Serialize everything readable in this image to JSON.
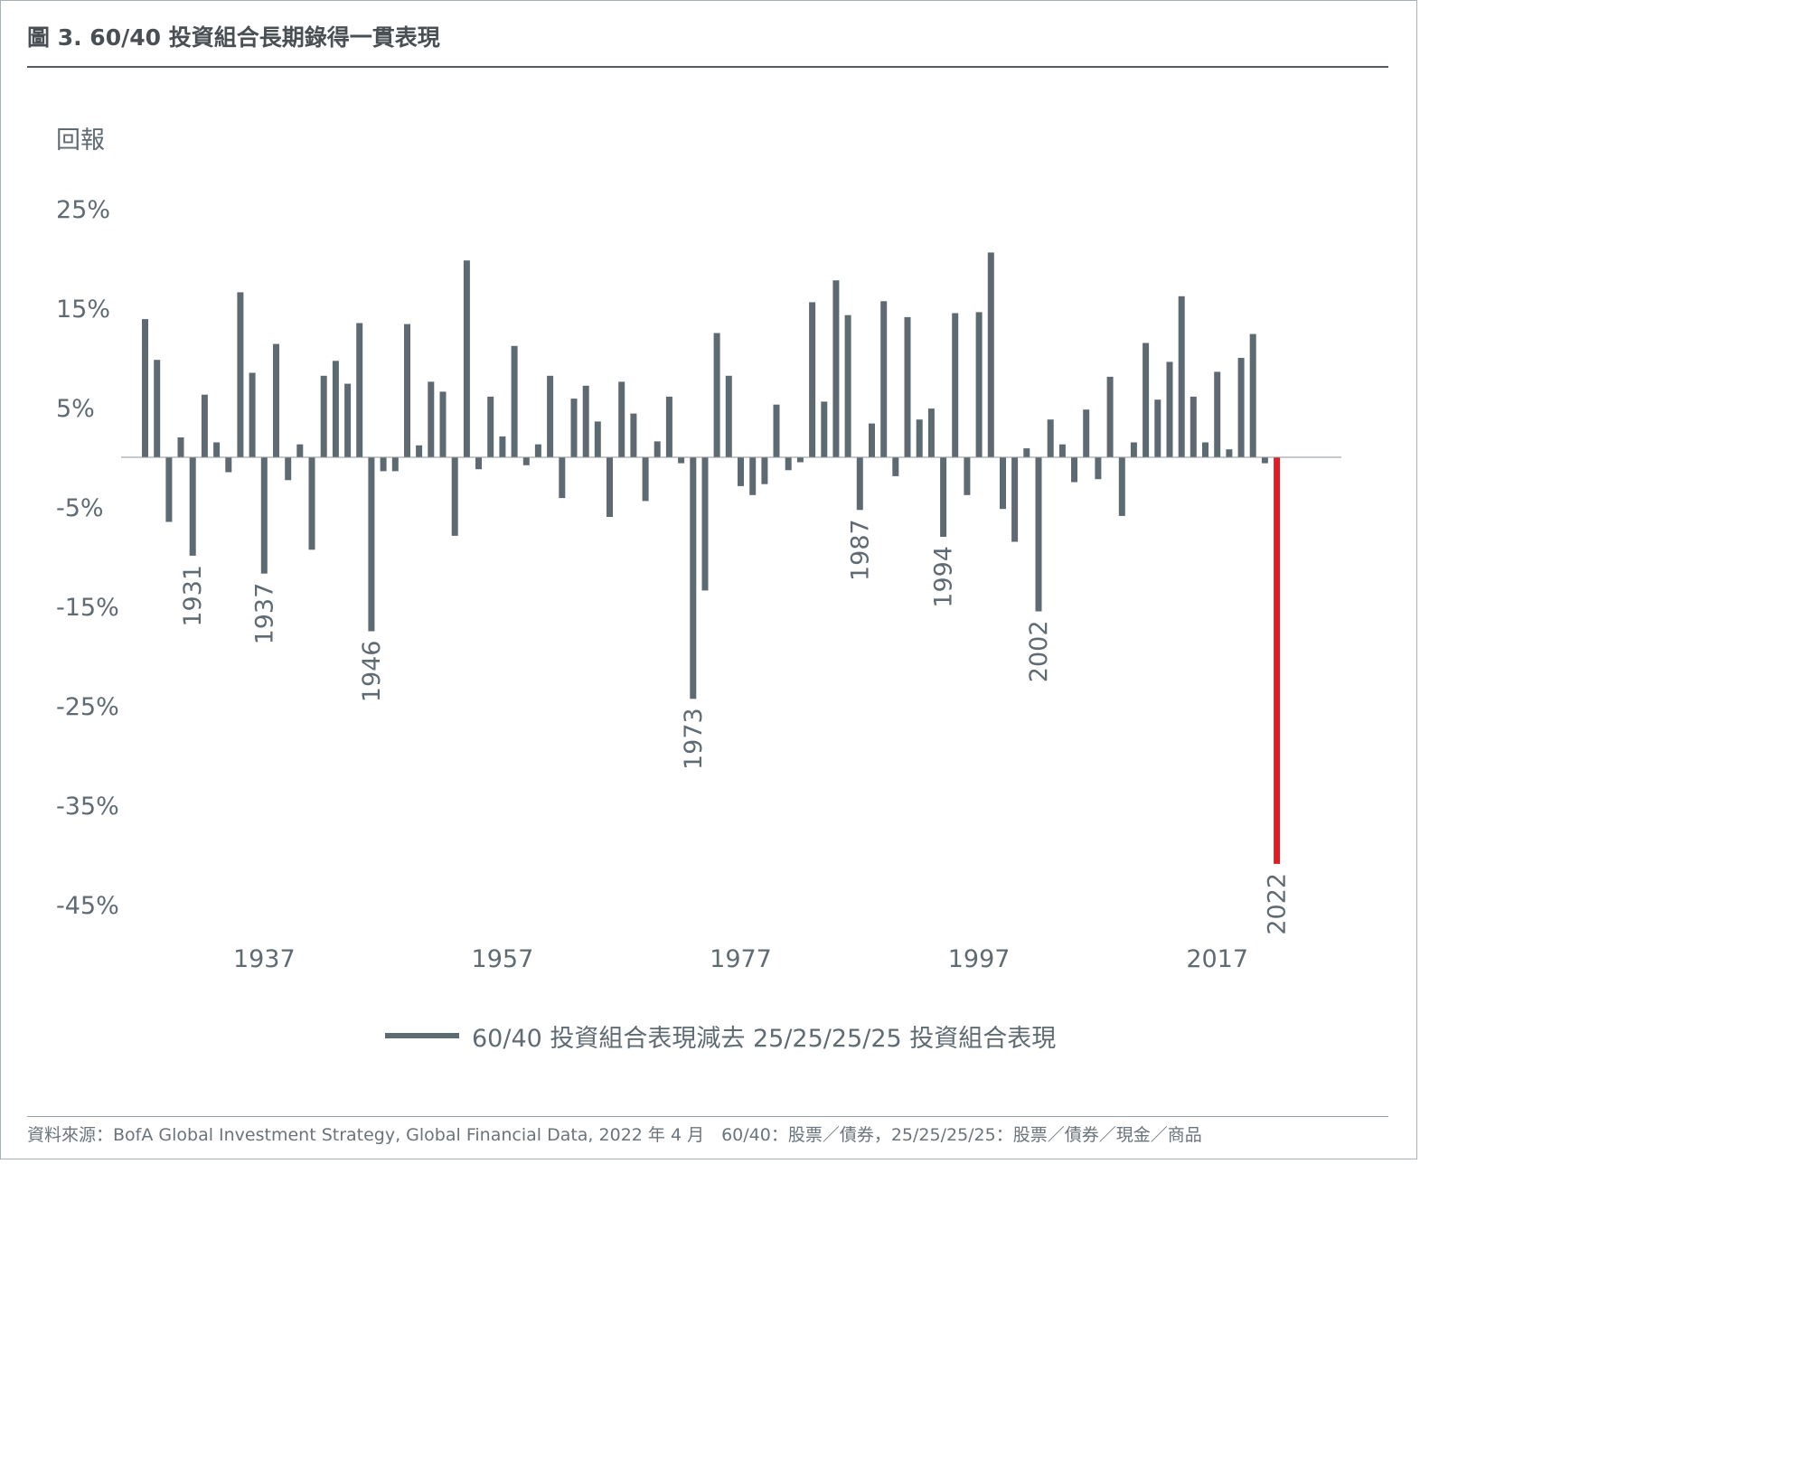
{
  "title": "圖 3. 60/40 投資組合長期錄得一貫表現",
  "source": "資料來源：BofA Global Investment Strategy, Global Financial Data, 2022 年 4 月　60/40：股票／債券，25/25/25/25：股票／債券／現金／商品",
  "colors": {
    "bar": "#5e6a72",
    "highlight": "#e31b23",
    "axis": "#8c959b",
    "text": "#5f6b73"
  },
  "chart_data": {
    "type": "bar",
    "ylabel": "回報",
    "ylim": [
      -45,
      25
    ],
    "yticks": [
      "25%",
      "15%",
      "5%",
      "-5%",
      "-15%",
      "-25%",
      "-35%",
      "-45%"
    ],
    "ytick_values": [
      25,
      15,
      5,
      -5,
      -15,
      -25,
      -35,
      -45
    ],
    "xticks": [
      "1937",
      "1957",
      "1977",
      "1997",
      "2017"
    ],
    "xtick_values": [
      1937,
      1957,
      1977,
      1997,
      2017
    ],
    "annotations": [
      {
        "label": "1931",
        "year": 1931
      },
      {
        "label": "1937",
        "year": 1937
      },
      {
        "label": "1946",
        "year": 1946
      },
      {
        "label": "1973",
        "year": 1973
      },
      {
        "label": "1987",
        "year": 1987
      },
      {
        "label": "1994",
        "year": 1994
      },
      {
        "label": "2002",
        "year": 2002
      },
      {
        "label": "2022",
        "year": 2022
      }
    ],
    "highlight_year": 2022,
    "legend": "60/40 投資組合表現減去 25/25/25/25 投資組合表現",
    "series": [
      {
        "name": "60/40 投資組合表現減去 25/25/25/25 投資組合表現",
        "x": [
          1927,
          1928,
          1929,
          1930,
          1931,
          1932,
          1933,
          1934,
          1935,
          1936,
          1937,
          1938,
          1939,
          1940,
          1941,
          1942,
          1943,
          1944,
          1945,
          1946,
          1947,
          1948,
          1949,
          1950,
          1951,
          1952,
          1953,
          1954,
          1955,
          1956,
          1957,
          1958,
          1959,
          1960,
          1961,
          1962,
          1963,
          1964,
          1965,
          1966,
          1967,
          1968,
          1969,
          1970,
          1971,
          1972,
          1973,
          1974,
          1975,
          1976,
          1977,
          1978,
          1979,
          1980,
          1981,
          1982,
          1983,
          1984,
          1985,
          1986,
          1987,
          1988,
          1989,
          1990,
          1991,
          1992,
          1993,
          1994,
          1995,
          1996,
          1997,
          1998,
          1999,
          2000,
          2001,
          2002,
          2003,
          2004,
          2005,
          2006,
          2007,
          2008,
          2009,
          2010,
          2011,
          2012,
          2013,
          2014,
          2015,
          2016,
          2017,
          2018,
          2019,
          2020,
          2021,
          2022
        ],
        "values": [
          13.9,
          9.8,
          -6.5,
          2.0,
          -9.9,
          6.3,
          1.5,
          -1.5,
          16.6,
          8.5,
          -11.7,
          11.4,
          -2.3,
          1.3,
          -9.3,
          8.2,
          9.7,
          7.4,
          13.5,
          -17.5,
          -1.4,
          -1.4,
          13.4,
          1.2,
          7.6,
          6.6,
          -7.9,
          19.8,
          -1.2,
          6.1,
          2.1,
          11.2,
          -0.8,
          1.3,
          8.2,
          -4.1,
          5.9,
          7.2,
          3.6,
          -6.0,
          7.6,
          4.4,
          -4.4,
          1.6,
          6.1,
          -0.6,
          -24.3,
          -13.4,
          12.5,
          8.2,
          -2.9,
          -3.8,
          -2.7,
          5.3,
          -1.3,
          -0.5,
          15.6,
          5.6,
          17.8,
          14.3,
          -5.3,
          3.4,
          15.7,
          -1.9,
          14.1,
          3.8,
          4.9,
          -8.0,
          14.5,
          -3.8,
          14.6,
          20.6,
          -5.2,
          -8.5,
          0.9,
          -15.5,
          3.8,
          1.3,
          -2.5,
          4.8,
          -2.2,
          8.1,
          -5.9,
          1.5,
          11.5,
          5.8,
          9.6,
          16.2,
          6.1,
          1.5,
          8.6,
          0.8,
          10.0,
          12.4,
          -0.6,
          -40.9
        ]
      }
    ]
  }
}
